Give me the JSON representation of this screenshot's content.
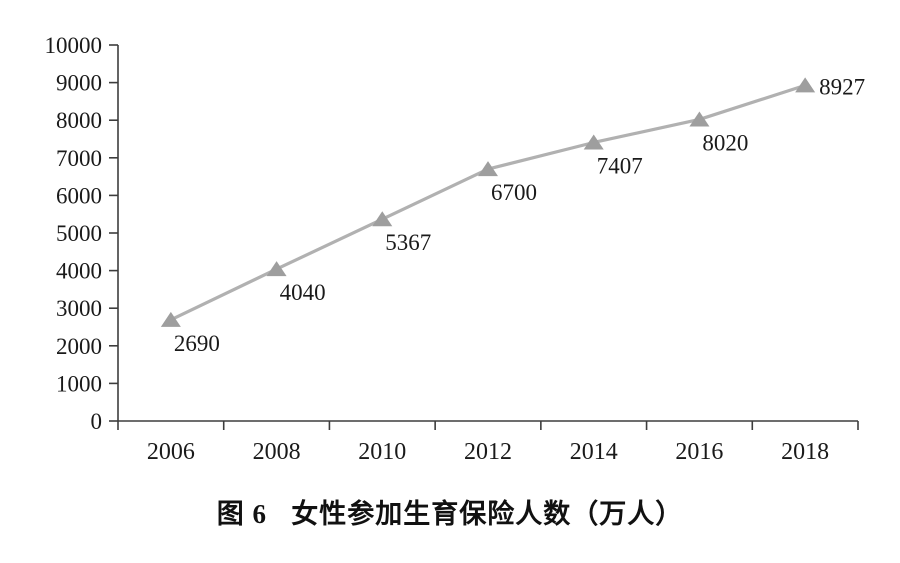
{
  "figure": {
    "caption_label": "图 6",
    "caption_text": "女性参加生育保险人数（万人）"
  },
  "chart_data": {
    "type": "line",
    "title": "图 6 女性参加生育保险人数（万人）",
    "categories": [
      "2006",
      "2008",
      "2010",
      "2012",
      "2014",
      "2016",
      "2018"
    ],
    "series": [
      {
        "name": "女性参加生育保险人数（万人）",
        "values": [
          2690,
          4040,
          5367,
          6700,
          7407,
          8020,
          8927
        ]
      }
    ],
    "data_labels": [
      "2690",
      "4040",
      "5367",
      "6700",
      "7407",
      "8020",
      "8927"
    ],
    "label_placement": [
      "below",
      "below",
      "below",
      "below",
      "below",
      "below",
      "right"
    ],
    "xlabel": "",
    "ylabel": "",
    "ylim": [
      0,
      10000
    ],
    "ytick_step": 1000,
    "yticks": [
      0,
      1000,
      2000,
      3000,
      4000,
      5000,
      6000,
      7000,
      8000,
      9000,
      10000
    ],
    "grid": false,
    "legend_position": "none",
    "marker": "triangle-up",
    "colors": {
      "line": "#b1b1b1",
      "marker": "#9e9e9e",
      "axis": "#3d3d3d",
      "text": "#1a1a1a"
    }
  }
}
